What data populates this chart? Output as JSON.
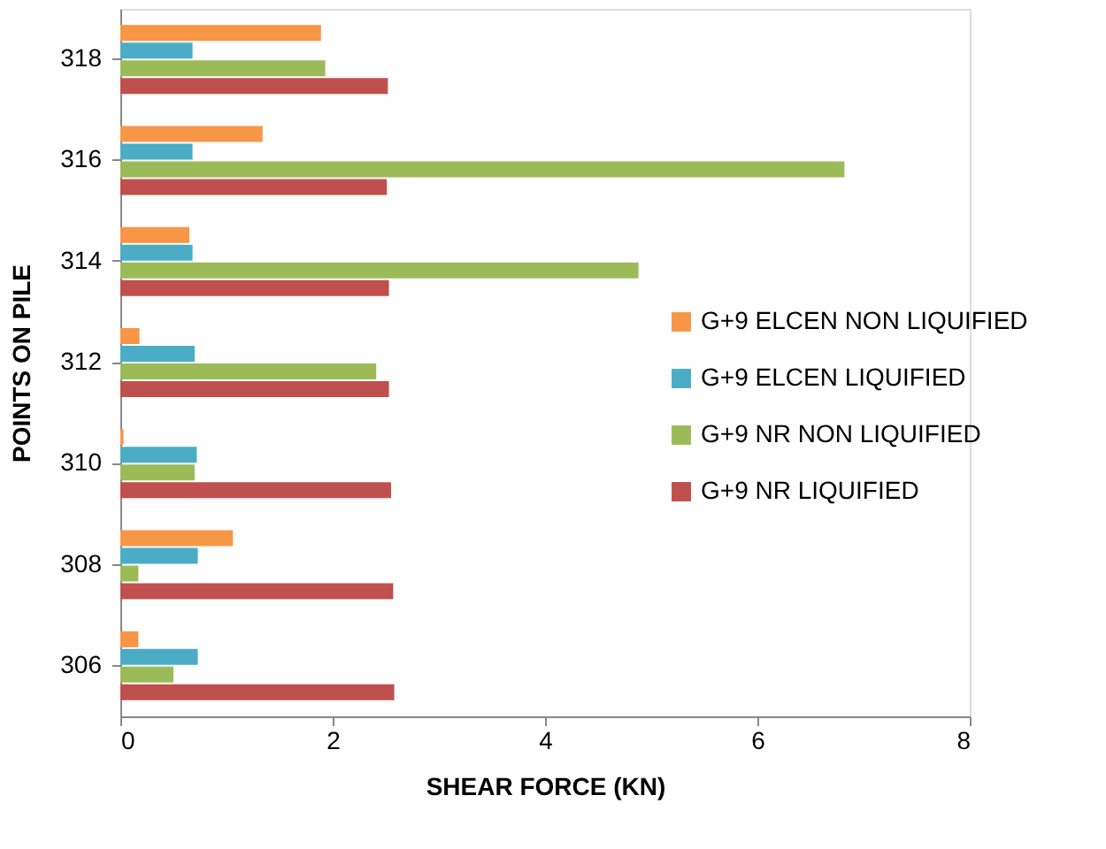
{
  "chart_data": {
    "type": "bar",
    "orientation": "horizontal",
    "xlabel": "SHEAR FORCE (KN)",
    "ylabel": "POINTS ON PILE",
    "categories": [
      "318",
      "316",
      "314",
      "312",
      "310",
      "308",
      "306"
    ],
    "series": [
      {
        "name": "G+9 ELCEN NON LIQUIFIED",
        "color": "#f79646",
        "values": [
          1.89,
          1.34,
          0.65,
          0.18,
          0.03,
          1.06,
          0.17
        ]
      },
      {
        "name": "G+9 ELCEN LIQUIFIED",
        "color": "#4bacc6",
        "values": [
          0.68,
          0.68,
          0.68,
          0.7,
          0.72,
          0.73,
          0.73
        ]
      },
      {
        "name": "G+9 NR NON LIQUIFIED",
        "color": "#9bbb59",
        "values": [
          1.93,
          6.82,
          4.88,
          2.41,
          0.7,
          0.17,
          0.5
        ]
      },
      {
        "name": "G+9 NR LIQUIFIED",
        "color": "#c0504d",
        "values": [
          2.52,
          2.51,
          2.53,
          2.53,
          2.55,
          2.57,
          2.58
        ]
      }
    ],
    "xlim": [
      0,
      8
    ],
    "xticks": [
      0,
      2,
      4,
      6,
      8
    ],
    "grid": false,
    "legend": "right"
  }
}
